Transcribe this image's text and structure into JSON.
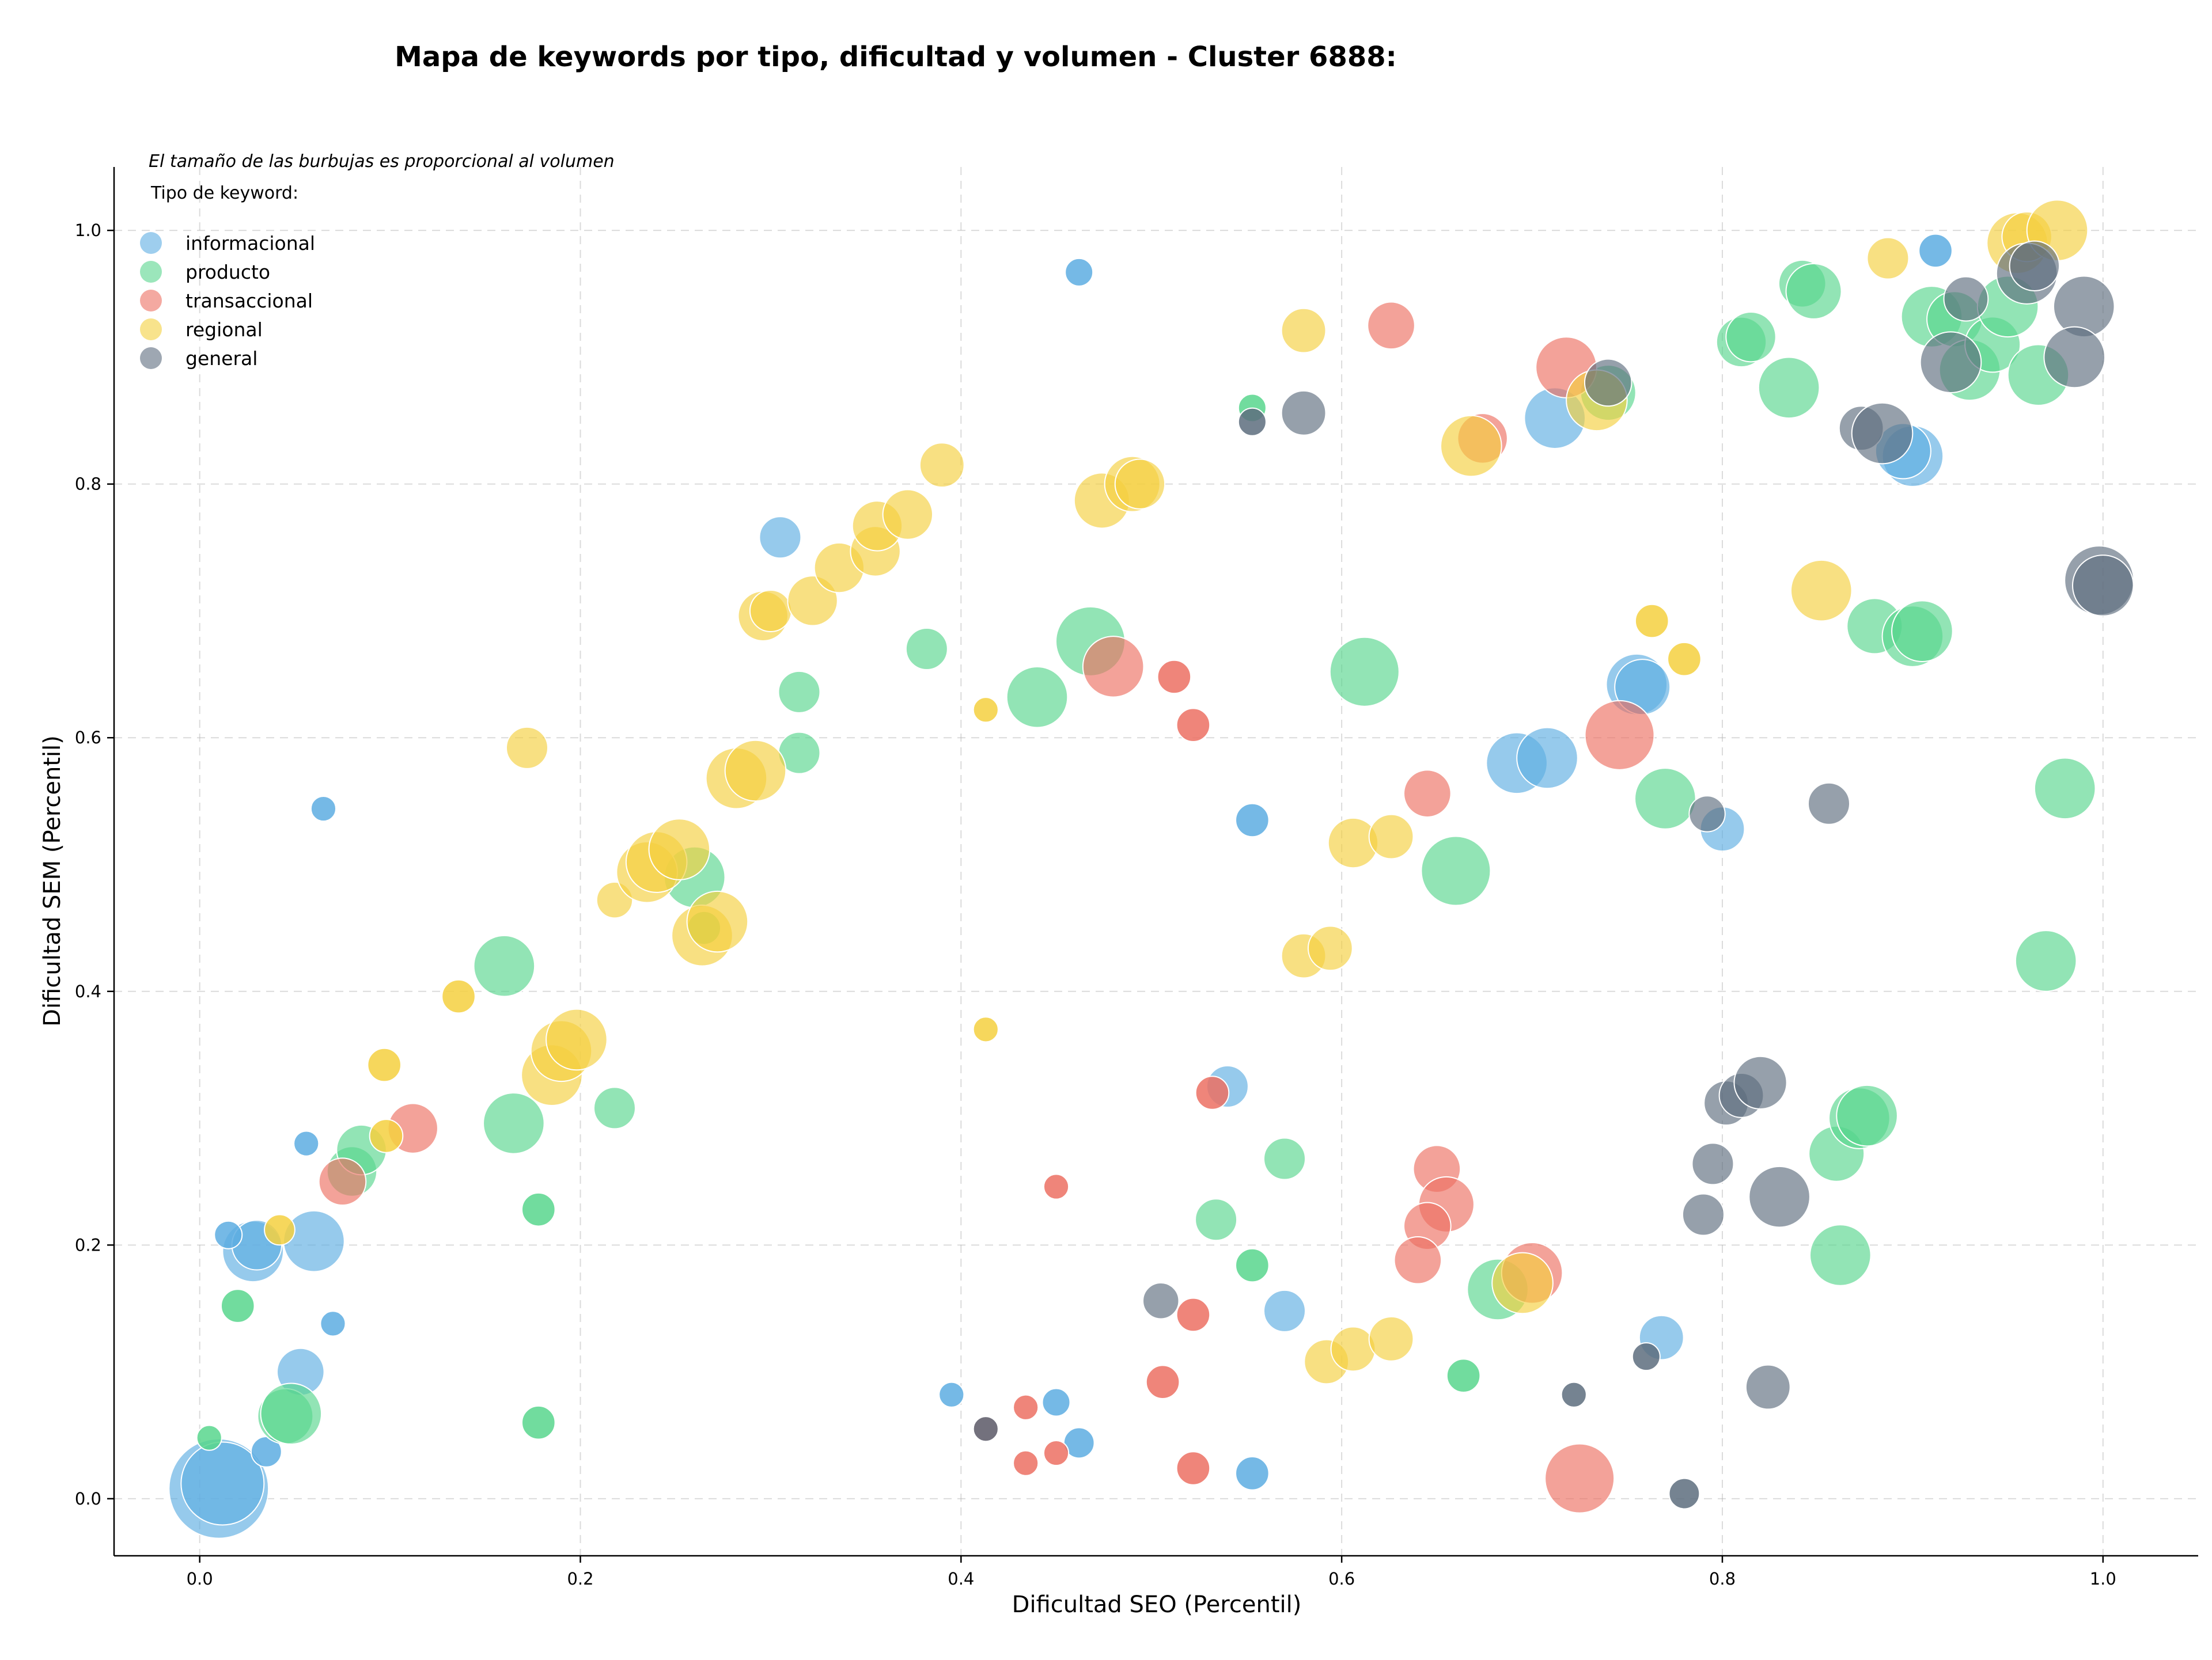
{
  "chart_data": {
    "type": "scatter",
    "title": "Mapa de keywords por tipo, dificultad y volumen - Cluster 6888:",
    "xlabel": "Dificultad SEO (Percentil)",
    "ylabel": "Dificultad SEM (Percentil)",
    "xlim": [
      -0.045,
      1.05
    ],
    "ylim": [
      -0.045,
      1.05
    ],
    "xticks": [
      "0.0",
      "0.2",
      "0.4",
      "0.6",
      "0.8",
      "1.0"
    ],
    "yticks": [
      "0.0",
      "0.2",
      "0.4",
      "0.6",
      "0.8",
      "1.0"
    ],
    "grid": true,
    "note": "El tamaño de las burbujas es proporcional al volumen",
    "legend_title": "Tipo de keyword:",
    "legend_position": "top-left",
    "series": [
      {
        "name": "informacional",
        "color": "#5dade2",
        "points": [
          [
            0.01,
            0.008,
            3.6
          ],
          [
            0.012,
            0.012,
            3
          ],
          [
            0.028,
            0.195,
            2.2
          ],
          [
            0.03,
            0.2,
            1.8
          ],
          [
            0.015,
            0.208,
            1
          ],
          [
            0.06,
            0.203,
            2.2
          ],
          [
            0.053,
            0.1,
            1.7
          ],
          [
            0.035,
            0.037,
            1.1
          ],
          [
            0.07,
            0.138,
            0.9
          ],
          [
            0.056,
            0.28,
            0.9
          ],
          [
            0.065,
            0.544,
            0.9
          ],
          [
            0.305,
            0.758,
            1.5
          ],
          [
            0.462,
            0.967,
            1
          ],
          [
            0.912,
            0.984,
            1.2
          ],
          [
            0.9,
            0.822,
            2.2
          ],
          [
            0.895,
            0.826,
            2
          ],
          [
            0.712,
            0.852,
            2.2
          ],
          [
            0.755,
            0.642,
            2.2
          ],
          [
            0.758,
            0.64,
            2
          ],
          [
            0.692,
            0.58,
            2.2
          ],
          [
            0.708,
            0.584,
            2.2
          ],
          [
            0.8,
            0.528,
            1.6
          ],
          [
            0.553,
            0.535,
            1.2
          ],
          [
            0.54,
            0.325,
            1.5
          ],
          [
            0.57,
            0.148,
            1.5
          ],
          [
            0.768,
            0.127,
            1.6
          ],
          [
            0.553,
            0.02,
            1.2
          ],
          [
            0.462,
            0.044,
            1.1
          ],
          [
            0.45,
            0.076,
            1
          ],
          [
            0.395,
            0.082,
            0.9
          ]
        ]
      },
      {
        "name": "producto",
        "color": "#58d68d",
        "points": [
          [
            0.045,
            0.065,
            2
          ],
          [
            0.048,
            0.067,
            2.2
          ],
          [
            0.005,
            0.048,
            0.9
          ],
          [
            0.02,
            0.152,
            1.2
          ],
          [
            0.08,
            0.258,
            1.8
          ],
          [
            0.085,
            0.275,
            1.8
          ],
          [
            0.16,
            0.42,
            2.2
          ],
          [
            0.165,
            0.296,
            2.2
          ],
          [
            0.178,
            0.228,
            1.2
          ],
          [
            0.178,
            0.06,
            1.2
          ],
          [
            0.218,
            0.308,
            1.5
          ],
          [
            0.26,
            0.49,
            2.2
          ],
          [
            0.265,
            0.45,
            1.2
          ],
          [
            0.315,
            0.636,
            1.5
          ],
          [
            0.315,
            0.588,
            1.5
          ],
          [
            0.382,
            0.67,
            1.5
          ],
          [
            0.44,
            0.632,
            2.2
          ],
          [
            0.468,
            0.676,
            2.5
          ],
          [
            0.612,
            0.652,
            2.5
          ],
          [
            0.66,
            0.495,
            2.5
          ],
          [
            0.77,
            0.552,
            2.2
          ],
          [
            0.57,
            0.268,
            1.5
          ],
          [
            0.534,
            0.22,
            1.5
          ],
          [
            0.553,
            0.184,
            1.2
          ],
          [
            0.553,
            0.86,
            1
          ],
          [
            0.664,
            0.097,
            1.2
          ],
          [
            0.682,
            0.165,
            2.2
          ],
          [
            0.86,
            0.272,
            2
          ],
          [
            0.872,
            0.3,
            2.2
          ],
          [
            0.876,
            0.302,
            2.2
          ],
          [
            0.862,
            0.192,
            2.2
          ],
          [
            0.88,
            0.688,
            2
          ],
          [
            0.9,
            0.68,
            2.2
          ],
          [
            0.905,
            0.684,
            2.2
          ],
          [
            0.98,
            0.56,
            2.2
          ],
          [
            0.97,
            0.424,
            2.2
          ],
          [
            0.81,
            0.912,
            1.8
          ],
          [
            0.815,
            0.916,
            1.8
          ],
          [
            0.835,
            0.876,
            2.2
          ],
          [
            0.842,
            0.958,
            1.7
          ],
          [
            0.848,
            0.952,
            2
          ],
          [
            0.91,
            0.932,
            2.2
          ],
          [
            0.922,
            0.93,
            2
          ],
          [
            0.93,
            0.89,
            2.2
          ],
          [
            0.942,
            0.91,
            2
          ],
          [
            0.95,
            0.94,
            2.2
          ],
          [
            0.966,
            0.886,
            2.2
          ],
          [
            0.74,
            0.872,
            2
          ]
        ]
      },
      {
        "name": "transaccional",
        "color": "#ec7063",
        "points": [
          [
            0.075,
            0.25,
            1.7
          ],
          [
            0.112,
            0.292,
            1.8
          ],
          [
            0.45,
            0.246,
            0.9
          ],
          [
            0.48,
            0.656,
            2.2
          ],
          [
            0.512,
            0.648,
            1.2
          ],
          [
            0.522,
            0.61,
            1.2
          ],
          [
            0.532,
            0.32,
            1.2
          ],
          [
            0.522,
            0.145,
            1.2
          ],
          [
            0.522,
            0.024,
            1.2
          ],
          [
            0.506,
            0.092,
            1.2
          ],
          [
            0.434,
            0.072,
            0.9
          ],
          [
            0.434,
            0.028,
            0.9
          ],
          [
            0.45,
            0.036,
            0.9
          ],
          [
            0.413,
            0.055,
            0.9
          ],
          [
            0.626,
            0.925,
            1.7
          ],
          [
            0.645,
            0.556,
            1.7
          ],
          [
            0.65,
            0.26,
            1.7
          ],
          [
            0.655,
            0.232,
            2
          ],
          [
            0.645,
            0.215,
            1.7
          ],
          [
            0.64,
            0.188,
            1.7
          ],
          [
            0.7,
            0.178,
            2.2
          ],
          [
            0.746,
            0.602,
            2.5
          ],
          [
            0.718,
            0.892,
            2.2
          ],
          [
            0.674,
            0.836,
            1.8
          ],
          [
            0.725,
            0.016,
            2.5
          ]
        ]
      },
      {
        "name": "regional",
        "color": "#f4d03f",
        "points": [
          [
            0.042,
            0.212,
            1.1
          ],
          [
            0.097,
            0.342,
            1.2
          ],
          [
            0.098,
            0.286,
            1.2
          ],
          [
            0.136,
            0.396,
            1.2
          ],
          [
            0.172,
            0.592,
            1.5
          ],
          [
            0.185,
            0.334,
            2.2
          ],
          [
            0.19,
            0.353,
            2.2
          ],
          [
            0.198,
            0.362,
            2.2
          ],
          [
            0.218,
            0.472,
            1.3
          ],
          [
            0.235,
            0.494,
            2.2
          ],
          [
            0.24,
            0.502,
            2.2
          ],
          [
            0.252,
            0.512,
            2.2
          ],
          [
            0.264,
            0.444,
            2.2
          ],
          [
            0.272,
            0.455,
            2.2
          ],
          [
            0.282,
            0.568,
            2.2
          ],
          [
            0.292,
            0.574,
            2.2
          ],
          [
            0.296,
            0.696,
            1.8
          ],
          [
            0.3,
            0.7,
            1.5
          ],
          [
            0.322,
            0.708,
            1.8
          ],
          [
            0.336,
            0.734,
            1.8
          ],
          [
            0.355,
            0.747,
            1.8
          ],
          [
            0.356,
            0.767,
            1.8
          ],
          [
            0.372,
            0.776,
            1.8
          ],
          [
            0.39,
            0.815,
            1.6
          ],
          [
            0.413,
            0.622,
            0.9
          ],
          [
            0.413,
            0.37,
            0.9
          ],
          [
            0.474,
            0.787,
            2
          ],
          [
            0.49,
            0.8,
            2
          ],
          [
            0.494,
            0.8,
            1.8
          ],
          [
            0.58,
            0.921,
            1.6
          ],
          [
            0.58,
            0.428,
            1.6
          ],
          [
            0.594,
            0.434,
            1.6
          ],
          [
            0.606,
            0.517,
            1.8
          ],
          [
            0.626,
            0.522,
            1.6
          ],
          [
            0.592,
            0.108,
            1.6
          ],
          [
            0.606,
            0.118,
            1.6
          ],
          [
            0.626,
            0.126,
            1.6
          ],
          [
            0.668,
            0.83,
            2.2
          ],
          [
            0.695,
            0.17,
            2.2
          ],
          [
            0.734,
            0.866,
            2.2
          ],
          [
            0.763,
            0.692,
            1.2
          ],
          [
            0.78,
            0.662,
            1.2
          ],
          [
            0.852,
            0.716,
            2.2
          ],
          [
            0.887,
            0.978,
            1.5
          ],
          [
            0.955,
            0.99,
            2.2
          ],
          [
            0.96,
            0.995,
            1.8
          ],
          [
            0.976,
            1.0,
            2.2
          ]
        ]
      },
      {
        "name": "general",
        "color": "#5d6d7e",
        "points": [
          [
            0.413,
            0.055,
            0.9
          ],
          [
            0.505,
            0.156,
            1.3
          ],
          [
            0.553,
            0.849,
            1
          ],
          [
            0.58,
            0.856,
            1.6
          ],
          [
            0.74,
            0.88,
            1.7
          ],
          [
            0.722,
            0.082,
            0.9
          ],
          [
            0.76,
            0.112,
            1
          ],
          [
            0.78,
            0.004,
            1.1
          ],
          [
            0.79,
            0.224,
            1.5
          ],
          [
            0.795,
            0.264,
            1.5
          ],
          [
            0.792,
            0.54,
            1.3
          ],
          [
            0.802,
            0.312,
            1.6
          ],
          [
            0.81,
            0.318,
            1.6
          ],
          [
            0.82,
            0.328,
            1.9
          ],
          [
            0.824,
            0.088,
            1.6
          ],
          [
            0.83,
            0.238,
            2.2
          ],
          [
            0.856,
            0.548,
            1.5
          ],
          [
            0.873,
            0.844,
            1.6
          ],
          [
            0.884,
            0.84,
            2.2
          ],
          [
            0.92,
            0.896,
            2.2
          ],
          [
            0.928,
            0.946,
            1.6
          ],
          [
            0.96,
            0.966,
            2.2
          ],
          [
            0.964,
            0.972,
            1.8
          ],
          [
            0.99,
            0.94,
            2.2
          ],
          [
            0.985,
            0.9,
            2.2
          ],
          [
            0.998,
            0.724,
            2.5
          ],
          [
            1.0,
            0.72,
            2.2
          ]
        ]
      }
    ]
  }
}
